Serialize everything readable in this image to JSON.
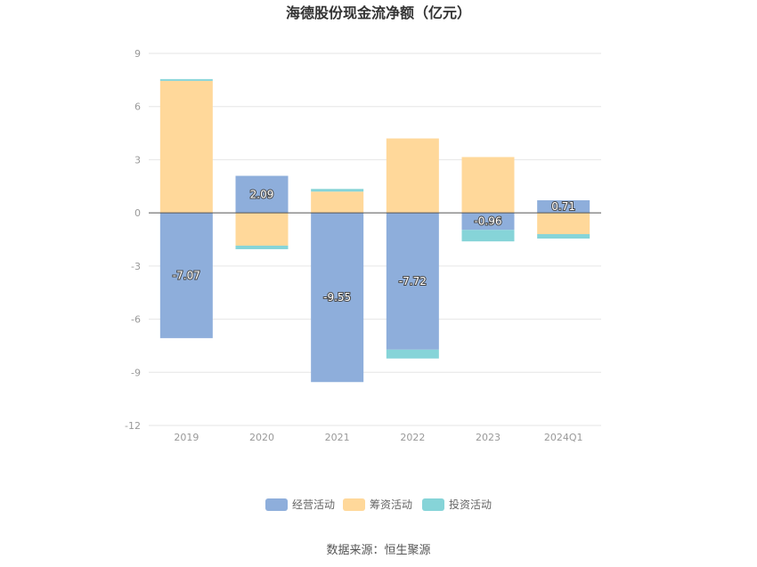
{
  "chart_data": {
    "type": "bar",
    "title": "海德股份现金流净额（亿元）",
    "categories": [
      "2019",
      "2020",
      "2021",
      "2022",
      "2023",
      "2024Q1"
    ],
    "series": [
      {
        "name": "经营活动",
        "color": "#8eaedb",
        "values": [
          -7.07,
          2.09,
          -9.55,
          -7.72,
          -0.96,
          0.71
        ]
      },
      {
        "name": "筹资活动",
        "color": "#ffd89a",
        "values": [
          7.45,
          -1.85,
          1.2,
          4.2,
          3.15,
          -1.2
        ]
      },
      {
        "name": "投资活动",
        "color": "#86d4d8",
        "values": [
          0.1,
          -0.2,
          0.15,
          -0.5,
          -0.65,
          -0.25
        ]
      }
    ],
    "data_labels": [
      "-7.07",
      "2.09",
      "-9.55",
      "-7.72",
      "-0.96",
      "0.71"
    ],
    "yticks": [
      9,
      6,
      3,
      0,
      -3,
      -6,
      -9,
      -12
    ],
    "ylim": [
      -12,
      9
    ],
    "stacked": true,
    "grid": true,
    "legend_position": "bottom"
  },
  "source_text": "数据来源：恒生聚源"
}
